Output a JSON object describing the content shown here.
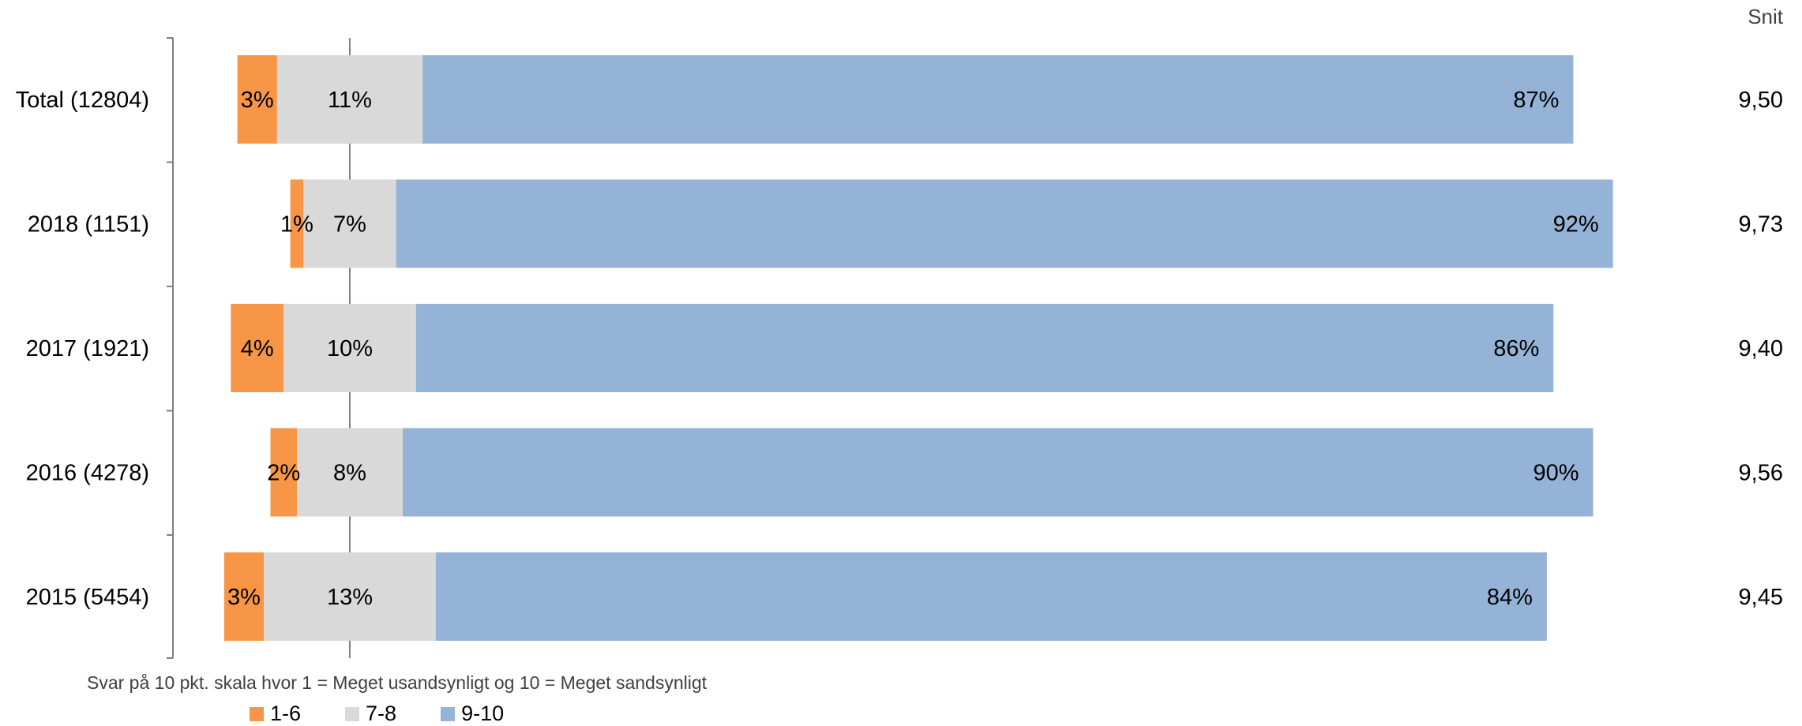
{
  "chart_data": {
    "type": "bar",
    "orientation": "horizontal",
    "stacked": true,
    "diverging": true,
    "categories": [
      "Total (12804)",
      "2018 (1151)",
      "2017 (1921)",
      "2016 (4278)",
      "2015 (5454)"
    ],
    "series": [
      {
        "name": "1-6",
        "color": "#F79646",
        "values": [
          3,
          1,
          4,
          2,
          3
        ],
        "labels": [
          "3%",
          "1%",
          "4%",
          "2%",
          "3%"
        ]
      },
      {
        "name": "7-8",
        "color": "#D9D9D9",
        "values": [
          11,
          7,
          10,
          8,
          13
        ],
        "labels": [
          "11%",
          "7%",
          "10%",
          "8%",
          "13%"
        ]
      },
      {
        "name": "9-10",
        "color": "#95B3D7",
        "values": [
          87,
          92,
          86,
          90,
          84
        ],
        "labels": [
          "87%",
          "92%",
          "86%",
          "90%",
          "84%"
        ]
      }
    ],
    "snit_header": "Snit",
    "snit": [
      "9,50",
      "9,73",
      "9,40",
      "9,56",
      "9,45"
    ],
    "note": "Svar på 10 pkt. skala hvor 1 = Meget usandsynligt og 10 = Meget sandsynligt",
    "legend": [
      "1-6",
      "7-8",
      "9-10"
    ]
  }
}
